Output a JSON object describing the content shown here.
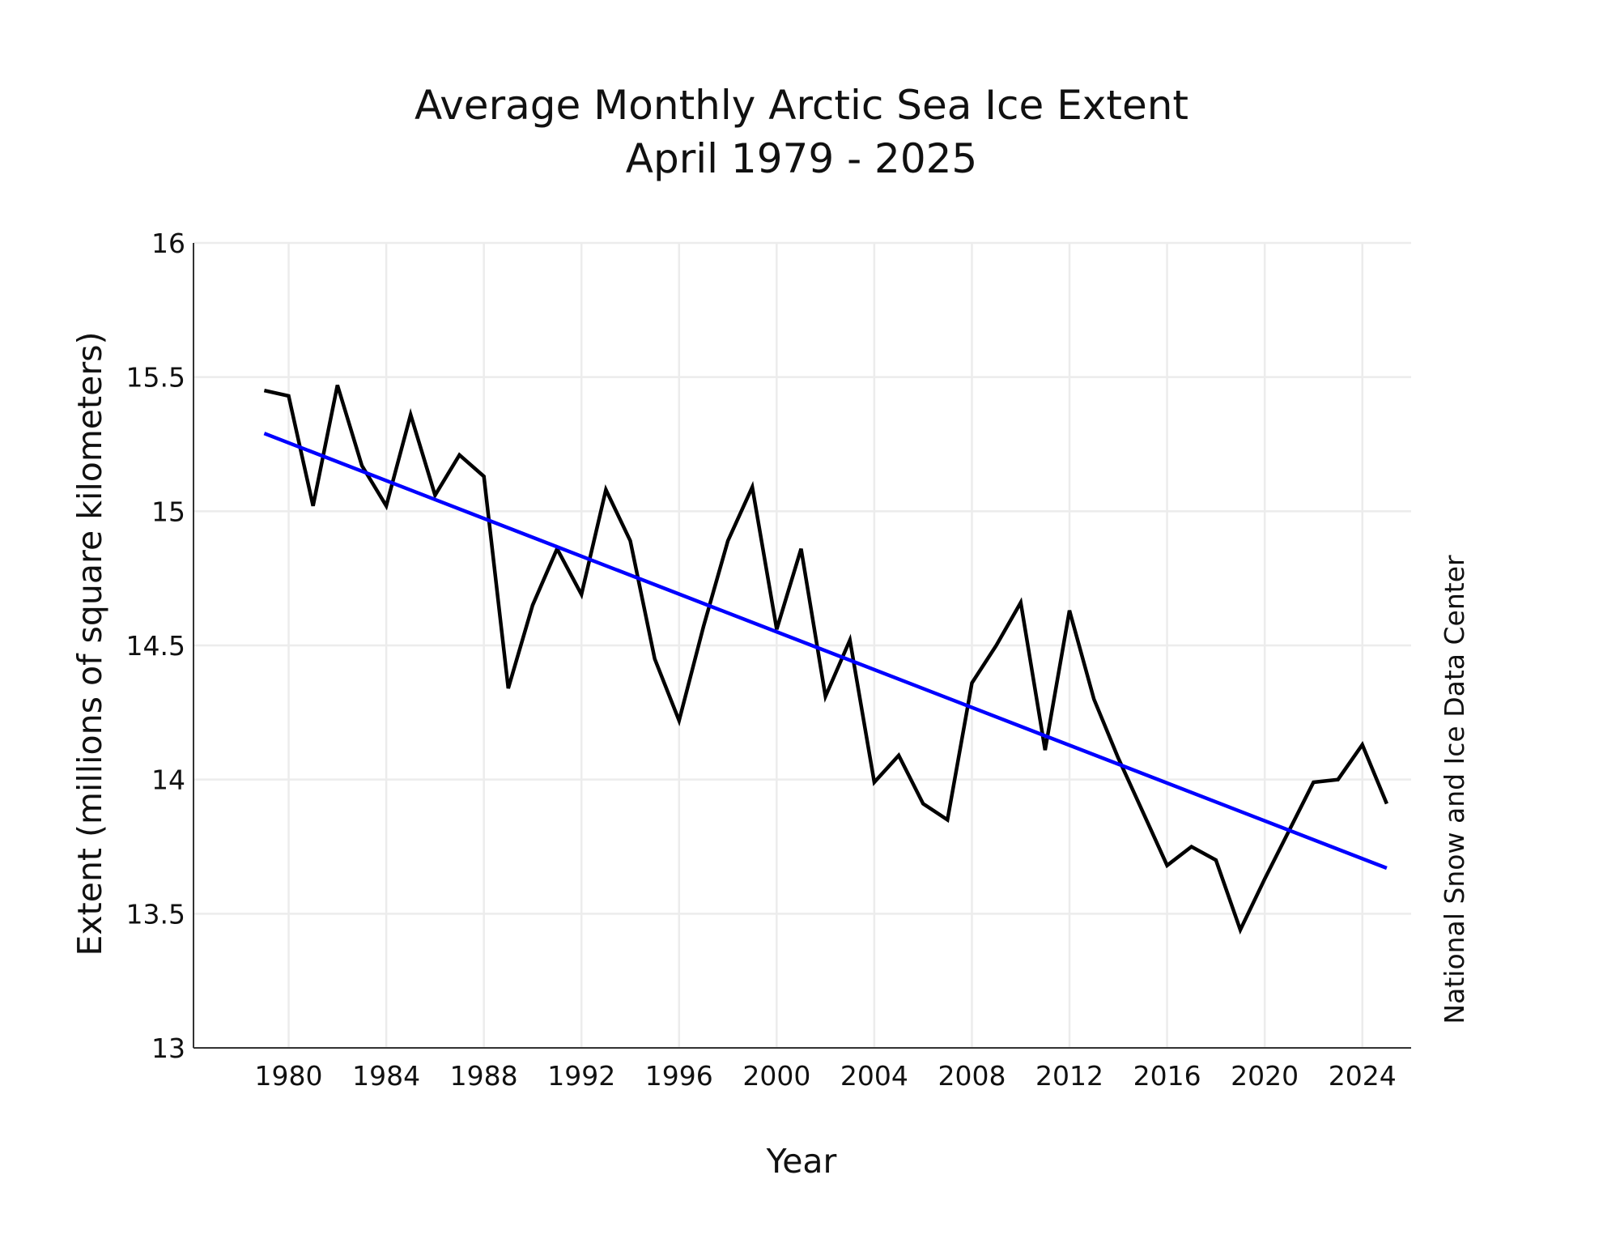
{
  "chart_data": {
    "type": "line",
    "title": "Average Monthly Arctic Sea Ice Extent",
    "subtitle": "April 1979 - 2025",
    "xlabel": "Year",
    "ylabel": "Extent (millions of square kilometers)",
    "credit": "National Snow and Ice Data Center",
    "xlim": [
      1976.1,
      2026.0
    ],
    "ylim": [
      13,
      16
    ],
    "x_ticks": [
      1980,
      1984,
      1988,
      1992,
      1996,
      2000,
      2004,
      2008,
      2012,
      2016,
      2020,
      2024
    ],
    "y_ticks": [
      13,
      13.5,
      14,
      14.5,
      15,
      15.5,
      16
    ],
    "y_tick_labels": [
      "13",
      "13.5",
      "14",
      "14.5",
      "15",
      "15.5",
      "16"
    ],
    "grid": true,
    "series": [
      {
        "color": "#000000",
        "x": [
          1979,
          1980,
          1981,
          1982,
          1983,
          1984,
          1985,
          1986,
          1987,
          1988,
          1989,
          1990,
          1991,
          1992,
          1993,
          1994,
          1995,
          1996,
          1997,
          1998,
          1999,
          2000,
          2001,
          2002,
          2003,
          2004,
          2005,
          2006,
          2007,
          2008,
          2009,
          2010,
          2011,
          2012,
          2013,
          2014,
          2015,
          2016,
          2017,
          2018,
          2019,
          2020,
          2021,
          2022,
          2023,
          2024,
          2025
        ],
        "values": [
          15.45,
          15.43,
          15.02,
          15.47,
          15.17,
          15.02,
          15.36,
          15.06,
          15.21,
          15.13,
          14.34,
          14.65,
          14.86,
          14.69,
          15.08,
          14.89,
          14.45,
          14.22,
          14.57,
          14.89,
          15.09,
          14.56,
          14.86,
          14.31,
          14.52,
          13.99,
          14.09,
          13.91,
          13.85,
          14.36,
          14.5,
          14.66,
          14.11,
          14.63,
          14.3,
          14.08,
          13.88,
          13.68,
          13.75,
          13.7,
          13.44,
          13.63,
          13.81,
          13.99,
          14.0,
          14.13,
          13.91
        ]
      },
      {
        "color": "#0000ff",
        "x": [
          1979,
          2025
        ],
        "values": [
          15.29,
          13.67
        ]
      }
    ]
  }
}
